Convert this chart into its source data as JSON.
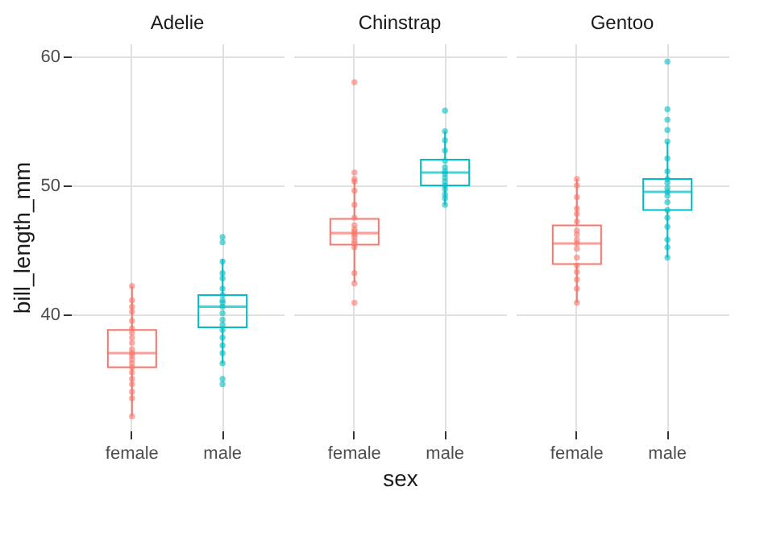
{
  "chart_data": [
    {
      "type": "box",
      "title": "Adelie",
      "ylabel": "bill_length_mm",
      "categories": [
        "female",
        "male"
      ],
      "colors": [
        "#f8766d",
        "#00bfc4"
      ],
      "ylim": [
        31,
        61
      ],
      "yticks": [
        40,
        50,
        60
      ],
      "grid": true,
      "boxes": [
        {
          "low": 32.1,
          "q1": 35.9,
          "median": 37.0,
          "q3": 38.8,
          "high": 42.2
        },
        {
          "low": 36.2,
          "q1": 39.0,
          "median": 40.6,
          "q3": 41.5,
          "high": 44.3
        }
      ],
      "series": [
        {
          "type": "scatter",
          "color": "#f8766d",
          "x": [
            "female",
            "female",
            "female",
            "female",
            "female",
            "female",
            "female",
            "female",
            "female",
            "female",
            "female",
            "female",
            "female",
            "female",
            "female",
            "female",
            "female",
            "female",
            "female",
            "female",
            "female",
            "female"
          ],
          "values": [
            32.1,
            33.5,
            34.0,
            34.6,
            35.0,
            35.5,
            35.9,
            36.2,
            36.5,
            36.8,
            37.0,
            37.3,
            null,
            37.8,
            38.2,
            38.6,
            38.9,
            39.5,
            40.2,
            40.6,
            41.1,
            42.2
          ]
        },
        {
          "type": "scatter",
          "color": "#00bfc4",
          "x": [
            "male",
            "male",
            "male",
            "male",
            "male",
            "male",
            "male",
            "male",
            "male",
            "male",
            "male",
            "male",
            "male",
            "male",
            "male",
            "male",
            "male",
            "male",
            "male",
            "male"
          ],
          "values": [
            34.6,
            35.0,
            36.2,
            37.0,
            37.6,
            38.2,
            38.8,
            39.2,
            39.6,
            40.1,
            40.6,
            40.9,
            41.1,
            41.5,
            42.0,
            42.8,
            43.2,
            44.1,
            45.6,
            46.0
          ]
        }
      ]
    },
    {
      "type": "box",
      "title": "Chinstrap",
      "xlabel": "sex",
      "categories": [
        "female",
        "male"
      ],
      "colors": [
        "#f8766d",
        "#00bfc4"
      ],
      "ylim": [
        31,
        61
      ],
      "yticks": [
        40,
        50,
        60
      ],
      "grid": true,
      "tick_labels": "x",
      "boxes": [
        {
          "low": 42.5,
          "q1": 45.4,
          "median": 46.3,
          "q3": 47.4,
          "high": 50.5
        },
        {
          "low": 48.5,
          "q1": 50.0,
          "median": 51.0,
          "q3": 52.0,
          "high": 54.2
        }
      ],
      "series": [
        {
          "type": "scatter",
          "color": "#f8766d",
          "x": [
            "female",
            "female",
            "female",
            "female",
            "female",
            "female",
            "female",
            "female",
            "female",
            "female",
            "female",
            "female",
            "female",
            "female",
            "female",
            "female",
            "female",
            "female",
            "female"
          ],
          "values": [
            40.9,
            42.4,
            null,
            43.2,
            45.2,
            45.5,
            45.7,
            46.0,
            46.2,
            46.4,
            46.6,
            46.9,
            47.5,
            48.5,
            49.6,
            50.3,
            50.5,
            51.0,
            58.0
          ]
        },
        {
          "type": "scatter",
          "color": "#00bfc4",
          "x": [
            "male",
            "male",
            "male",
            "male",
            "male",
            "male",
            "male",
            "male",
            "male",
            "male",
            "male",
            "male",
            "male",
            "male",
            "male",
            "male"
          ],
          "values": [
            48.5,
            49.0,
            49.3,
            49.7,
            50.0,
            50.3,
            50.6,
            50.9,
            51.1,
            51.4,
            51.9,
            null,
            52.7,
            53.5,
            54.2,
            55.8
          ]
        }
      ]
    },
    {
      "type": "box",
      "title": "Gentoo",
      "categories": [
        "female",
        "male"
      ],
      "colors": [
        "#f8766d",
        "#00bfc4"
      ],
      "ylim": [
        31,
        61
      ],
      "yticks": [
        40,
        50,
        60
      ],
      "grid": true,
      "tick_labels": "x",
      "boxes": [
        {
          "low": 40.9,
          "q1": 43.9,
          "median": 45.5,
          "q3": 46.9,
          "high": 50.5
        },
        {
          "low": 44.4,
          "q1": 48.1,
          "median": 49.5,
          "q3": 50.5,
          "high": 53.4
        }
      ],
      "series": [
        {
          "type": "scatter",
          "color": "#f8766d",
          "x": [
            "female",
            "female",
            "female",
            "female",
            "female",
            "female",
            "female",
            "female",
            "female",
            "female",
            "female",
            "female",
            "female",
            "female",
            "female",
            "female",
            "female"
          ],
          "values": [
            40.9,
            42.0,
            42.7,
            43.3,
            43.8,
            44.4,
            45.1,
            45.5,
            45.8,
            46.2,
            46.5,
            47.2,
            47.8,
            48.2,
            49.1,
            50.0,
            50.5
          ]
        },
        {
          "type": "scatter",
          "color": "#00bfc4",
          "x": [
            "male",
            "male",
            "male",
            "male",
            "male",
            "male",
            "male",
            "male",
            "male",
            "male",
            "male",
            "male",
            "male",
            "male",
            "male",
            "male",
            "male",
            "male",
            "male"
          ],
          "values": [
            44.4,
            45.2,
            45.8,
            46.8,
            47.5,
            48.1,
            48.7,
            49.2,
            49.5,
            49.8,
            50.2,
            50.5,
            51.1,
            52.1,
            53.4,
            54.3,
            55.1,
            55.9,
            59.6
          ]
        }
      ]
    }
  ]
}
